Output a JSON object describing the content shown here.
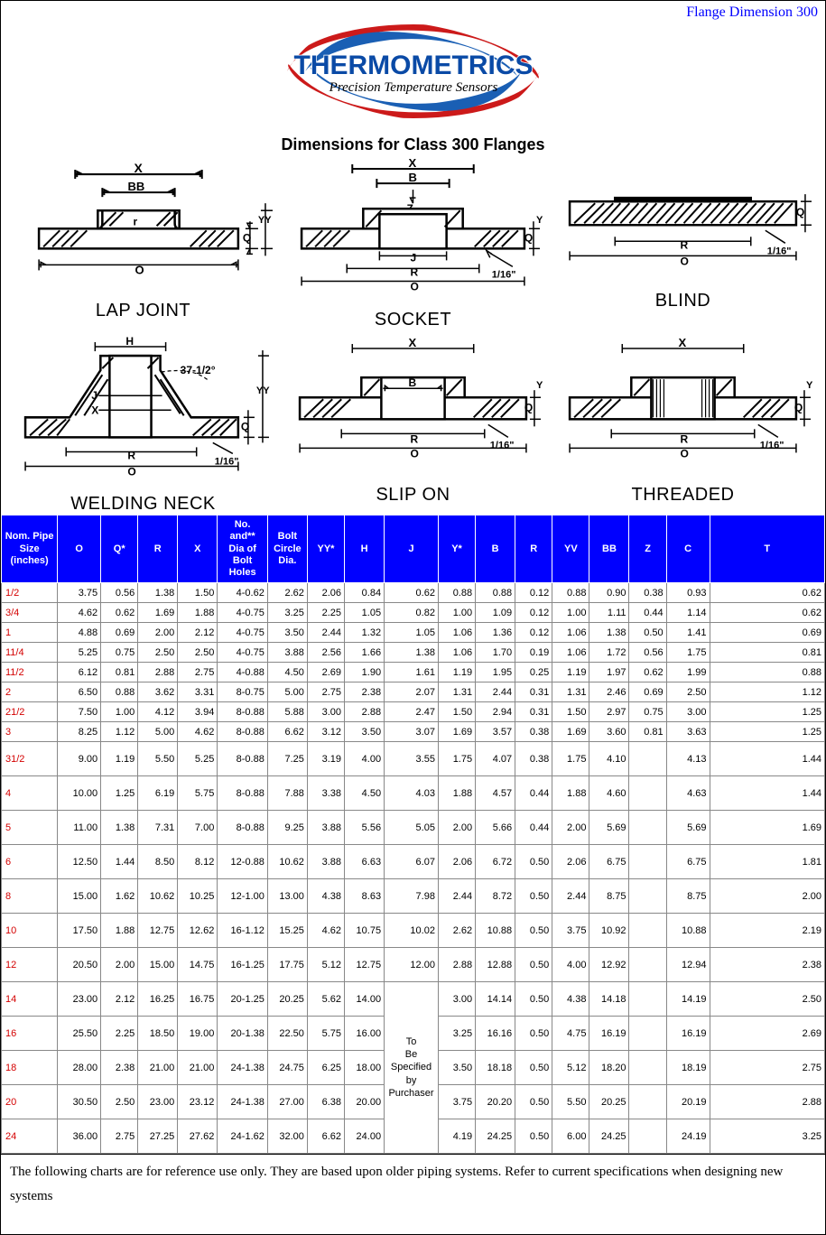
{
  "header_corner": "Flange Dimension 300",
  "logo": {
    "main": "THERMOMETRICS",
    "sub": "Precision Temperature Sensors",
    "swirl_outer": "#cc1a1a",
    "swirl_inner": "#1a5fb4",
    "text_color": "#0a4aa6"
  },
  "main_title": "Dimensions for Class 300 Flanges",
  "diagram_labels": {
    "lap_joint": "LAP JOINT",
    "socket": "SOCKET",
    "blind": "BLIND",
    "welding_neck": "WELDING NECK",
    "slip_on": "SLIP ON",
    "threaded": "THREADED"
  },
  "table": {
    "header_bg": "#0000ff",
    "header_fg": "#ffffff",
    "size_color": "#d40000",
    "columns": [
      "Nom. Pipe Size (inches)",
      "O",
      "Q*",
      "R",
      "X",
      "No. and** Dia of Bolt Holes",
      "Bolt Circle Dia.",
      "YY*",
      "H",
      "J",
      "Y*",
      "B",
      "R",
      "YV",
      "BB",
      "Z",
      "C",
      "T"
    ],
    "col_widths_pct": [
      6.5,
      5,
      4.3,
      4.6,
      4.6,
      5.8,
      4.6,
      4.3,
      4.6,
      6,
      4.3,
      4.6,
      4.3,
      4.3,
      4.6,
      4.3,
      5,
      13.3
    ],
    "merged_note": "To Be Specified by Purchaser",
    "rows": [
      {
        "size": "1/2",
        "tall": false,
        "c": [
          "3.75",
          "0.56",
          "1.38",
          "1.50",
          "4-0.62",
          "2.62",
          "2.06",
          "0.84",
          "0.62",
          "0.88",
          "0.88",
          "0.12",
          "0.88",
          "0.90",
          "0.38",
          "0.93",
          "0.62"
        ]
      },
      {
        "size": "3/4",
        "tall": false,
        "c": [
          "4.62",
          "0.62",
          "1.69",
          "1.88",
          "4-0.75",
          "3.25",
          "2.25",
          "1.05",
          "0.82",
          "1.00",
          "1.09",
          "0.12",
          "1.00",
          "1.11",
          "0.44",
          "1.14",
          "0.62"
        ]
      },
      {
        "size": "1",
        "tall": false,
        "c": [
          "4.88",
          "0.69",
          "2.00",
          "2.12",
          "4-0.75",
          "3.50",
          "2.44",
          "1.32",
          "1.05",
          "1.06",
          "1.36",
          "0.12",
          "1.06",
          "1.38",
          "0.50",
          "1.41",
          "0.69"
        ]
      },
      {
        "size": "11/4",
        "tall": false,
        "c": [
          "5.25",
          "0.75",
          "2.50",
          "2.50",
          "4-0.75",
          "3.88",
          "2.56",
          "1.66",
          "1.38",
          "1.06",
          "1.70",
          "0.19",
          "1.06",
          "1.72",
          "0.56",
          "1.75",
          "0.81"
        ]
      },
      {
        "size": "11/2",
        "tall": false,
        "c": [
          "6.12",
          "0.81",
          "2.88",
          "2.75",
          "4-0.88",
          "4.50",
          "2.69",
          "1.90",
          "1.61",
          "1.19",
          "1.95",
          "0.25",
          "1.19",
          "1.97",
          "0.62",
          "1.99",
          "0.88"
        ]
      },
      {
        "size": "2",
        "tall": false,
        "c": [
          "6.50",
          "0.88",
          "3.62",
          "3.31",
          "8-0.75",
          "5.00",
          "2.75",
          "2.38",
          "2.07",
          "1.31",
          "2.44",
          "0.31",
          "1.31",
          "2.46",
          "0.69",
          "2.50",
          "1.12"
        ]
      },
      {
        "size": "21/2",
        "tall": false,
        "c": [
          "7.50",
          "1.00",
          "4.12",
          "3.94",
          "8-0.88",
          "5.88",
          "3.00",
          "2.88",
          "2.47",
          "1.50",
          "2.94",
          "0.31",
          "1.50",
          "2.97",
          "0.75",
          "3.00",
          "1.25"
        ]
      },
      {
        "size": "3",
        "tall": false,
        "c": [
          "8.25",
          "1.12",
          "5.00",
          "4.62",
          "8-0.88",
          "6.62",
          "3.12",
          "3.50",
          "3.07",
          "1.69",
          "3.57",
          "0.38",
          "1.69",
          "3.60",
          "0.81",
          "3.63",
          "1.25"
        ]
      },
      {
        "size": "31/2",
        "tall": true,
        "c": [
          "9.00",
          "1.19",
          "5.50",
          "5.25",
          "8-0.88",
          "7.25",
          "3.19",
          "4.00",
          "3.55",
          "1.75",
          "4.07",
          "0.38",
          "1.75",
          "4.10",
          "",
          "4.13",
          "1.44"
        ]
      },
      {
        "size": "4",
        "tall": true,
        "c": [
          "10.00",
          "1.25",
          "6.19",
          "5.75",
          "8-0.88",
          "7.88",
          "3.38",
          "4.50",
          "4.03",
          "1.88",
          "4.57",
          "0.44",
          "1.88",
          "4.60",
          "",
          "4.63",
          "1.44"
        ]
      },
      {
        "size": "5",
        "tall": true,
        "c": [
          "11.00",
          "1.38",
          "7.31",
          "7.00",
          "8-0.88",
          "9.25",
          "3.88",
          "5.56",
          "5.05",
          "2.00",
          "5.66",
          "0.44",
          "2.00",
          "5.69",
          "",
          "5.69",
          "1.69"
        ]
      },
      {
        "size": "6",
        "tall": true,
        "c": [
          "12.50",
          "1.44",
          "8.50",
          "8.12",
          "12-0.88",
          "10.62",
          "3.88",
          "6.63",
          "6.07",
          "2.06",
          "6.72",
          "0.50",
          "2.06",
          "6.75",
          "",
          "6.75",
          "1.81"
        ]
      },
      {
        "size": "8",
        "tall": true,
        "c": [
          "15.00",
          "1.62",
          "10.62",
          "10.25",
          "12-1.00",
          "13.00",
          "4.38",
          "8.63",
          "7.98",
          "2.44",
          "8.72",
          "0.50",
          "2.44",
          "8.75",
          "",
          "8.75",
          "2.00"
        ]
      },
      {
        "size": "10",
        "tall": true,
        "c": [
          "17.50",
          "1.88",
          "12.75",
          "12.62",
          "16-1.12",
          "15.25",
          "4.62",
          "10.75",
          "10.02",
          "2.62",
          "10.88",
          "0.50",
          "3.75",
          "10.92",
          "",
          "10.88",
          "2.19"
        ]
      },
      {
        "size": "12",
        "tall": true,
        "c": [
          "20.50",
          "2.00",
          "15.00",
          "14.75",
          "16-1.25",
          "17.75",
          "5.12",
          "12.75",
          "12.00",
          "2.88",
          "12.88",
          "0.50",
          "4.00",
          "12.92",
          "",
          "12.94",
          "2.38"
        ]
      },
      {
        "size": "14",
        "tall": true,
        "merge_start": true,
        "c": [
          "23.00",
          "2.12",
          "16.25",
          "16.75",
          "20-1.25",
          "20.25",
          "5.62",
          "14.00",
          null,
          "3.00",
          "14.14",
          "0.50",
          "4.38",
          "14.18",
          "",
          "14.19",
          "2.50"
        ]
      },
      {
        "size": "16",
        "tall": true,
        "c": [
          "25.50",
          "2.25",
          "18.50",
          "19.00",
          "20-1.38",
          "22.50",
          "5.75",
          "16.00",
          null,
          "3.25",
          "16.16",
          "0.50",
          "4.75",
          "16.19",
          "",
          "16.19",
          "2.69"
        ]
      },
      {
        "size": "18",
        "tall": true,
        "c": [
          "28.00",
          "2.38",
          "21.00",
          "21.00",
          "24-1.38",
          "24.75",
          "6.25",
          "18.00",
          null,
          "3.50",
          "18.18",
          "0.50",
          "5.12",
          "18.20",
          "",
          "18.19",
          "2.75"
        ]
      },
      {
        "size": "20",
        "tall": true,
        "c": [
          "30.50",
          "2.50",
          "23.00",
          "23.12",
          "24-1.38",
          "27.00",
          "6.38",
          "20.00",
          null,
          "3.75",
          "20.20",
          "0.50",
          "5.50",
          "20.25",
          "",
          "20.19",
          "2.88"
        ]
      },
      {
        "size": "24",
        "tall": true,
        "c": [
          "36.00",
          "2.75",
          "27.25",
          "27.62",
          "24-1.62",
          "32.00",
          "6.62",
          "24.00",
          null,
          "4.19",
          "24.25",
          "0.50",
          "6.00",
          "24.25",
          "",
          "24.19",
          "3.25"
        ]
      }
    ]
  },
  "footnote": "The following charts are for reference use only. They are based upon older piping systems.  Refer to current specifications when designing new systems"
}
